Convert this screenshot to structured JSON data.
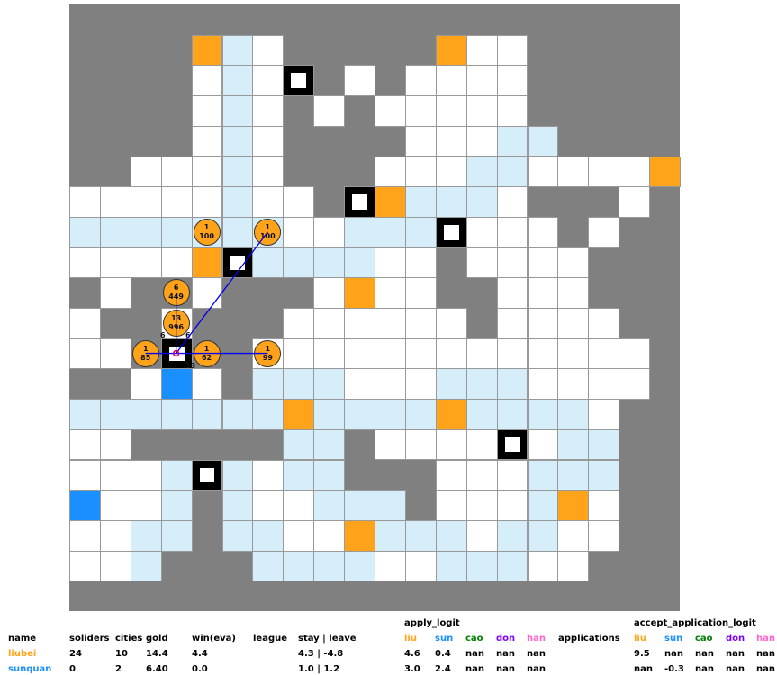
{
  "colors": {
    "W": "#ffffff",
    "L": "#d6eef9",
    "O": "#ffa31a",
    "B": "#1a8fff",
    "G": "#808080",
    "K": "#000000",
    "liu": "#ffa31a",
    "sun": "#1a8fff",
    "cao": "#008000",
    "don": "#8000ff",
    "han": "#ff66cc"
  },
  "map_rows": [
    "GGGGGGGGGGGGGGGGGGGG",
    "GGGGOLWGGGGGOWWGGGGG",
    "GGGGWLWKGWGWWWWGGGGG",
    "GGGGWLWGWGWWWWWGGGGG",
    "GGGGWLWGGGGWWWLLGGGG",
    "GGWWWLWGGGWWWLLWWWWO",
    "WWWWWLWWGKOLLLWGGGWG",
    "LLLLLLLWWLLLKWWWGWGG",
    "WWWWOKLLLLWWGWWWWGGG",
    "GWGGWGGGWOWWGGWWWGGG",
    "WGGWGGGWWWWWWGWWWWGG",
    "WWGKGGWWWWWWWWWWWWWG",
    "GGWBWGLLLWWWLLLWWWWG",
    "LLLLLLLOLLLLOLLLLWGG",
    "WWGGGGGLLGWWWWKWLLGG",
    "WWWLKLWLLGGGWWWLLLGG",
    "BWWLGLWWLLLGWWWLOWGG",
    "WWLLGLLWWOLLLWLLWWGG",
    "WWLGGGLLLLWWLLLWWGGG",
    "GGGGGGGGGGGGGGGGGGGG"
  ],
  "units": [
    {
      "row": 7,
      "col": 4,
      "count": "1",
      "value": "100"
    },
    {
      "row": 7,
      "col": 6,
      "count": "1",
      "value": "100"
    },
    {
      "row": 9,
      "col": 3,
      "count": "6",
      "value": "449"
    },
    {
      "row": 10,
      "col": 3,
      "count": "13",
      "value": "996"
    },
    {
      "row": 11,
      "col": 2,
      "count": "1",
      "value": "85"
    },
    {
      "row": 11,
      "col": 4,
      "count": "1",
      "value": "62"
    },
    {
      "row": 11,
      "col": 6,
      "count": "1",
      "value": "99"
    }
  ],
  "move_tags": [
    "6",
    "6",
    "13"
  ],
  "table": {
    "apply_header": "apply_logit",
    "accept_header": "accept_application_logit",
    "headers": [
      "name",
      "soliders",
      "cities",
      "gold",
      "win(eva)",
      "league",
      "stay | leave"
    ],
    "short": [
      "liu",
      "sun",
      "cao",
      "don",
      "han"
    ],
    "applications": "applications",
    "rows": [
      {
        "name": "liubei",
        "soliders": "24",
        "cities": "10",
        "gold": "14.4",
        "win": "4.4",
        "league": "",
        "stay": "4.3 | -4.8",
        "apply": [
          "4.6",
          "0.4",
          "nan",
          "nan",
          "nan"
        ],
        "accept": [
          "9.5",
          "nan",
          "nan",
          "nan",
          "nan"
        ]
      },
      {
        "name": "sunquan",
        "soliders": "0",
        "cities": "2",
        "gold": "6.40",
        "win": "0.0",
        "league": "",
        "stay": "1.0 | 1.2",
        "apply": [
          "3.0",
          "2.4",
          "nan",
          "nan",
          "nan"
        ],
        "accept": [
          "nan",
          "-0.3",
          "nan",
          "nan",
          "nan"
        ]
      }
    ]
  }
}
